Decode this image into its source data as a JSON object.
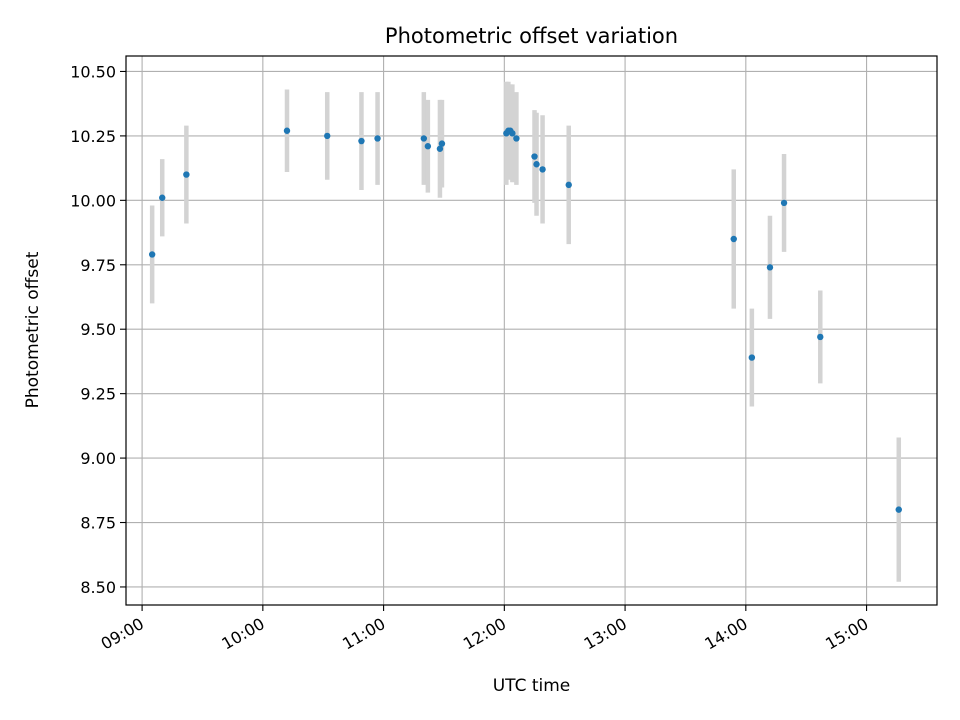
{
  "chart_data": {
    "type": "scatter",
    "title": "Photometric offset variation",
    "xlabel": "UTC time",
    "ylabel": "Photometric offset",
    "x_axis": {
      "kind": "time",
      "range": [
        "08:52",
        "15:35"
      ],
      "ticks": [
        "09:00",
        "10:00",
        "11:00",
        "12:00",
        "13:00",
        "14:00",
        "15:00"
      ]
    },
    "y_axis": {
      "range": [
        8.43,
        10.56
      ],
      "ticks": [
        8.5,
        8.75,
        9.0,
        9.25,
        9.5,
        9.75,
        10.0,
        10.25,
        10.5
      ],
      "tick_labels": [
        "8.50",
        "8.75",
        "9.00",
        "9.25",
        "9.50",
        "9.75",
        "10.00",
        "10.25",
        "10.50"
      ]
    },
    "grid": true,
    "colors": {
      "marker": "#1f77b4",
      "errorbar": "#d3d3d3",
      "grid": "#b0b0b0"
    },
    "points": [
      {
        "x": "09:05",
        "y": 9.79,
        "err": 0.19
      },
      {
        "x": "09:10",
        "y": 10.01,
        "err": 0.15
      },
      {
        "x": "09:22",
        "y": 10.1,
        "err": 0.19
      },
      {
        "x": "10:12",
        "y": 10.27,
        "err": 0.16
      },
      {
        "x": "10:32",
        "y": 10.25,
        "err": 0.17
      },
      {
        "x": "10:49",
        "y": 10.23,
        "err": 0.19
      },
      {
        "x": "10:57",
        "y": 10.24,
        "err": 0.18
      },
      {
        "x": "11:20",
        "y": 10.24,
        "err": 0.18
      },
      {
        "x": "11:22",
        "y": 10.21,
        "err": 0.18
      },
      {
        "x": "11:28",
        "y": 10.2,
        "err": 0.19
      },
      {
        "x": "11:29",
        "y": 10.22,
        "err": 0.17
      },
      {
        "x": "12:01",
        "y": 10.26,
        "err": 0.2
      },
      {
        "x": "12:02",
        "y": 10.27,
        "err": 0.19
      },
      {
        "x": "12:03",
        "y": 10.27,
        "err": 0.18
      },
      {
        "x": "12:04",
        "y": 10.26,
        "err": 0.19
      },
      {
        "x": "12:06",
        "y": 10.24,
        "err": 0.18
      },
      {
        "x": "12:15",
        "y": 10.17,
        "err": 0.18
      },
      {
        "x": "12:16",
        "y": 10.14,
        "err": 0.2
      },
      {
        "x": "12:19",
        "y": 10.12,
        "err": 0.21
      },
      {
        "x": "12:32",
        "y": 10.06,
        "err": 0.23
      },
      {
        "x": "13:54",
        "y": 9.85,
        "err": 0.27
      },
      {
        "x": "14:03",
        "y": 9.39,
        "err": 0.19
      },
      {
        "x": "14:12",
        "y": 9.74,
        "err": 0.2
      },
      {
        "x": "14:19",
        "y": 9.99,
        "err": 0.19
      },
      {
        "x": "14:37",
        "y": 9.47,
        "err": 0.18
      },
      {
        "x": "15:16",
        "y": 8.8,
        "err": 0.28
      }
    ]
  }
}
